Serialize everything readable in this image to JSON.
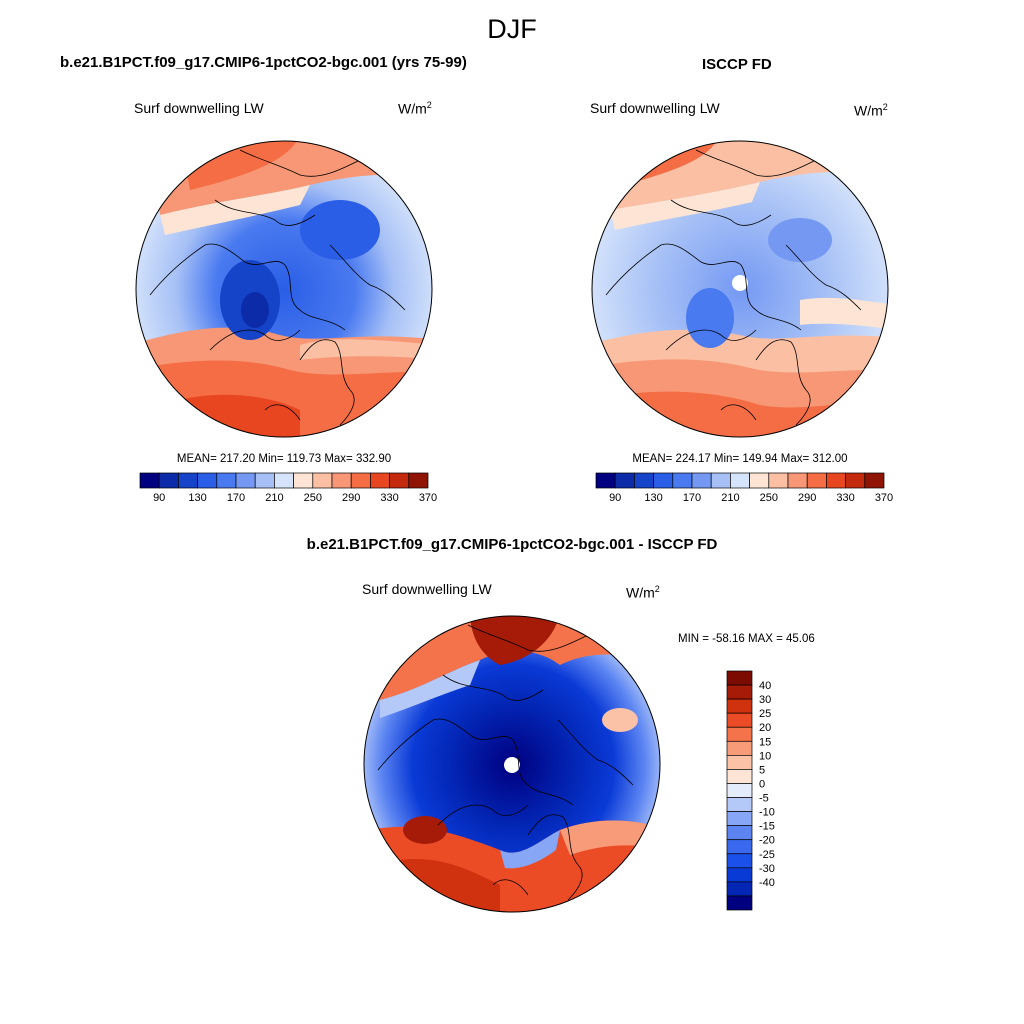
{
  "figure": {
    "season": "DJF",
    "units_base": "W/m",
    "units_exp": "2"
  },
  "panels": [
    {
      "title": "b.e21.B1PCT.f09_g17.CMIP6-1pctCO2-bgc.001 (yrs 75-99)",
      "variable": "Surf downwelling LW",
      "stats": "MEAN= 217.20  Min= 119.73  Max= 332.90",
      "colorbar": {
        "colors": [
          "#000080",
          "#0b2ba8",
          "#1544c8",
          "#2a5ee6",
          "#4a7af0",
          "#7599f3",
          "#a6c0f6",
          "#d6e4fb",
          "#fde4d4",
          "#fbbfa3",
          "#f79775",
          "#f46d45",
          "#e84621",
          "#c32a0e",
          "#8f1405"
        ],
        "tick_labels": [
          "90",
          "130",
          "170",
          "210",
          "250",
          "290",
          "330",
          "370"
        ]
      }
    },
    {
      "title": "ISCCP FD",
      "variable": "Surf downwelling LW",
      "stats": "MEAN= 224.17  Min= 149.94  Max= 312.00",
      "colorbar": {
        "colors": [
          "#000080",
          "#0b2ba8",
          "#1544c8",
          "#2a5ee6",
          "#4a7af0",
          "#7599f3",
          "#a6c0f6",
          "#d6e4fb",
          "#fde4d4",
          "#fbbfa3",
          "#f79775",
          "#f46d45",
          "#e84621",
          "#c32a0e",
          "#8f1405"
        ],
        "tick_labels": [
          "90",
          "130",
          "170",
          "210",
          "250",
          "290",
          "330",
          "370"
        ]
      }
    },
    {
      "title": "b.e21.B1PCT.f09_g17.CMIP6-1pctCO2-bgc.001 - ISCCP FD",
      "variable": "Surf downwelling LW",
      "stats": "MIN = -58.16 MAX =  45.06",
      "colorbar": {
        "colors": [
          "#000080",
          "#0326b5",
          "#0a3ad6",
          "#1c50ea",
          "#3a68ef",
          "#5c85f2",
          "#87a6f5",
          "#b5c9f8",
          "#e4ecfc",
          "#fde4d4",
          "#fbc2a7",
          "#f89b78",
          "#f4734b",
          "#ec4c25",
          "#d0310f",
          "#a51b07",
          "#7c0c02"
        ],
        "tick_labels": [
          "40",
          "30",
          "25",
          "20",
          "15",
          "10",
          "5",
          "0",
          "-5",
          "-10",
          "-15",
          "-20",
          "-25",
          "-30",
          "-40"
        ]
      }
    }
  ]
}
